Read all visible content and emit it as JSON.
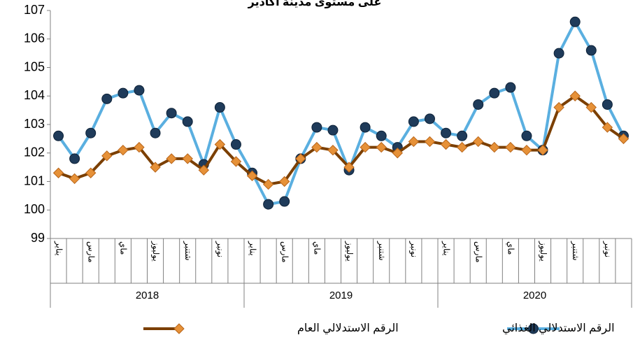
{
  "chart_data": {
    "type": "line",
    "title": "على مستوى مدينة أكادير",
    "categories": [
      "يناير",
      null,
      "مارس",
      null,
      "ماي",
      null,
      "يوليوز",
      null,
      "شتنبر",
      null,
      "نونبر",
      null,
      "يناير",
      null,
      "مارس",
      null,
      "ماي",
      null,
      "يوليوز",
      null,
      "شتنبر",
      null,
      "نونبر",
      null,
      "يناير",
      null,
      "مارس",
      null,
      "ماي",
      null,
      "يوليوز",
      null,
      "شتنبر",
      null,
      "نونبر",
      null
    ],
    "years": [
      "2018",
      "2019",
      "2020"
    ],
    "series": [
      {
        "name": "الرقم الاستدلالي الغذائي",
        "color": "#5aafe0",
        "marker_color": "#1f3b5a",
        "marker": "circle",
        "values": [
          102.6,
          101.8,
          102.7,
          103.9,
          104.1,
          104.2,
          102.7,
          103.4,
          103.1,
          101.6,
          103.6,
          102.3,
          101.3,
          100.2,
          100.3,
          101.8,
          102.9,
          102.8,
          101.4,
          102.9,
          102.6,
          102.2,
          103.1,
          103.2,
          102.7,
          102.6,
          103.7,
          104.1,
          104.3,
          102.6,
          102.1,
          105.5,
          106.6,
          105.6,
          103.7,
          102.6
        ]
      },
      {
        "name": "الرقم الاستدلالي العام",
        "color": "#7b3f00",
        "marker_color": "#e69138",
        "marker": "diamond",
        "values": [
          101.3,
          101.1,
          101.3,
          101.9,
          102.1,
          102.2,
          101.5,
          101.8,
          101.8,
          101.4,
          102.3,
          101.7,
          101.2,
          100.9,
          101.0,
          101.8,
          102.2,
          102.1,
          101.5,
          102.2,
          102.2,
          102.0,
          102.4,
          102.4,
          102.3,
          102.2,
          102.4,
          102.2,
          102.2,
          102.1,
          102.1,
          103.6,
          104.0,
          103.6,
          102.9,
          102.5
        ]
      }
    ],
    "ylim": [
      99,
      107
    ],
    "yticks": [
      99,
      100,
      101,
      102,
      103,
      104,
      105,
      106,
      107
    ],
    "grid": false
  }
}
